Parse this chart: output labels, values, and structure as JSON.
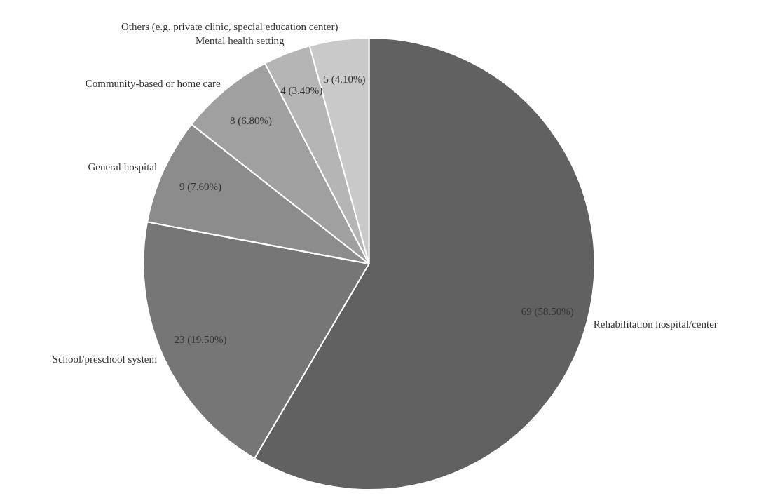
{
  "chart_data": {
    "type": "pie",
    "categories": [
      "Rehabilitation hospital/center",
      "School/preschool system",
      "General hospital",
      "Community-based or home care",
      "Mental health setting",
      "Others (e.g. private clinic, special education center)"
    ],
    "values": [
      69,
      23,
      9,
      8,
      4,
      5
    ],
    "value_labels": [
      "69 (58.50%)",
      "23 (19.50%)",
      "9 (7.60%)",
      "8 (6.80%)",
      "4 (3.40%)",
      "5 (4.10%)"
    ],
    "colors": [
      "#616161",
      "#767676",
      "#8c8c8c",
      "#a0a0a0",
      "#b5b5b5",
      "#c9c9c9"
    ],
    "legend": false
  }
}
